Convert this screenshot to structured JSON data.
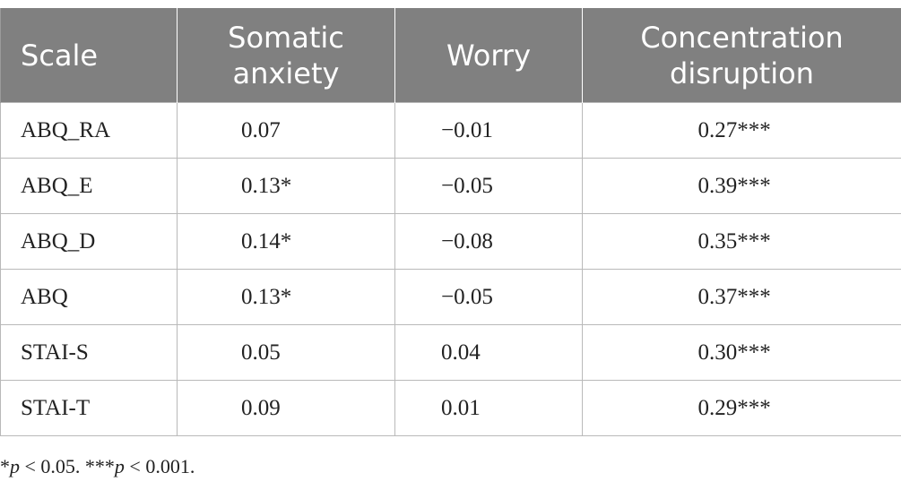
{
  "table": {
    "headers": {
      "scale": "Scale",
      "somatic_line1": "Somatic",
      "somatic_line2": "anxiety",
      "worry": "Worry",
      "concentration_line1": "Concentration",
      "concentration_line2": "disruption"
    },
    "rows": [
      {
        "scale": "ABQ_RA",
        "somatic": "0.07",
        "worry": "−0.01",
        "concentration": "0.27***"
      },
      {
        "scale": "ABQ_E",
        "somatic": "0.13*",
        "worry": "−0.05",
        "concentration": "0.39***"
      },
      {
        "scale": "ABQ_D",
        "somatic": "0.14*",
        "worry": "−0.08",
        "concentration": "0.35***"
      },
      {
        "scale": "ABQ",
        "somatic": "0.13*",
        "worry": "−0.05",
        "concentration": "0.37***"
      },
      {
        "scale": "STAI-S",
        "somatic": "0.05",
        "worry": "0.04",
        "concentration": "0.30***"
      },
      {
        "scale": "STAI-T",
        "somatic": "0.09",
        "worry": "0.01",
        "concentration": "0.29***"
      }
    ]
  },
  "footnote": {
    "star1": "*",
    "p1": "p",
    "rest1": " < 0.05. ***",
    "p2": "p",
    "rest2": " < 0.001."
  },
  "colors": {
    "header_bg": "#808080",
    "header_text": "#ffffff",
    "border": "#b9b9b9"
  }
}
